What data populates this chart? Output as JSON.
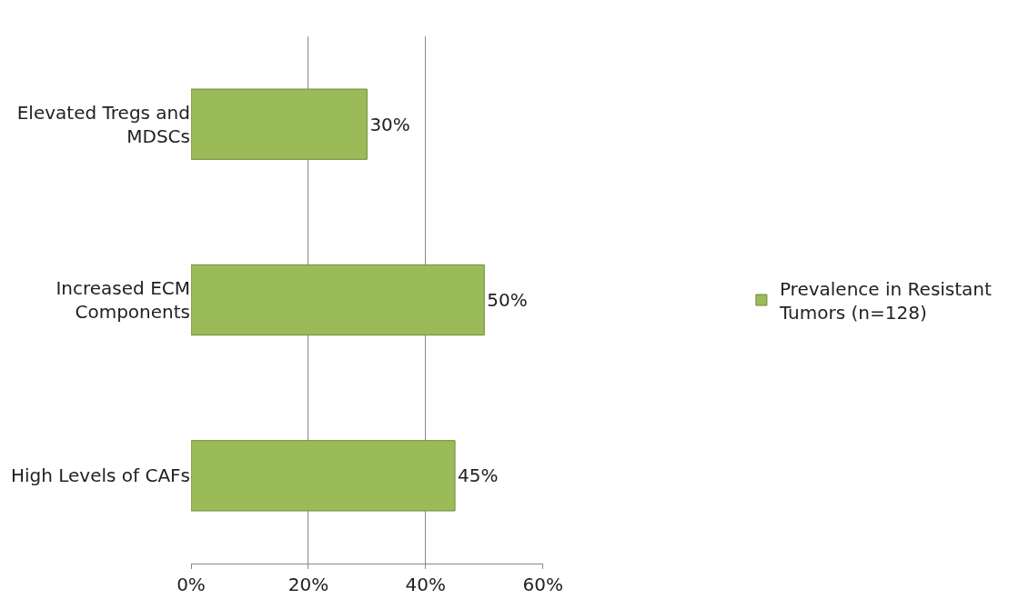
{
  "chart_data": {
    "type": "bar",
    "orientation": "horizontal",
    "categories": [
      "Elevated Tregs and MDSCs",
      "Increased ECM Components",
      "High Levels of CAFs"
    ],
    "series": [
      {
        "name": "Prevalence in Resistant Tumors (n=128)",
        "color": "#9bbb59",
        "values": [
          30,
          50,
          45
        ],
        "value_labels": [
          "30%",
          "50%",
          "45%"
        ]
      }
    ],
    "xlim": [
      0,
      60
    ],
    "xticks": [
      {
        "value": 0,
        "label": "0%"
      },
      {
        "value": 20,
        "label": "20%"
      },
      {
        "value": 40,
        "label": "40%"
      },
      {
        "value": 60,
        "label": "60%"
      }
    ],
    "grid": "x",
    "legend": "right"
  }
}
